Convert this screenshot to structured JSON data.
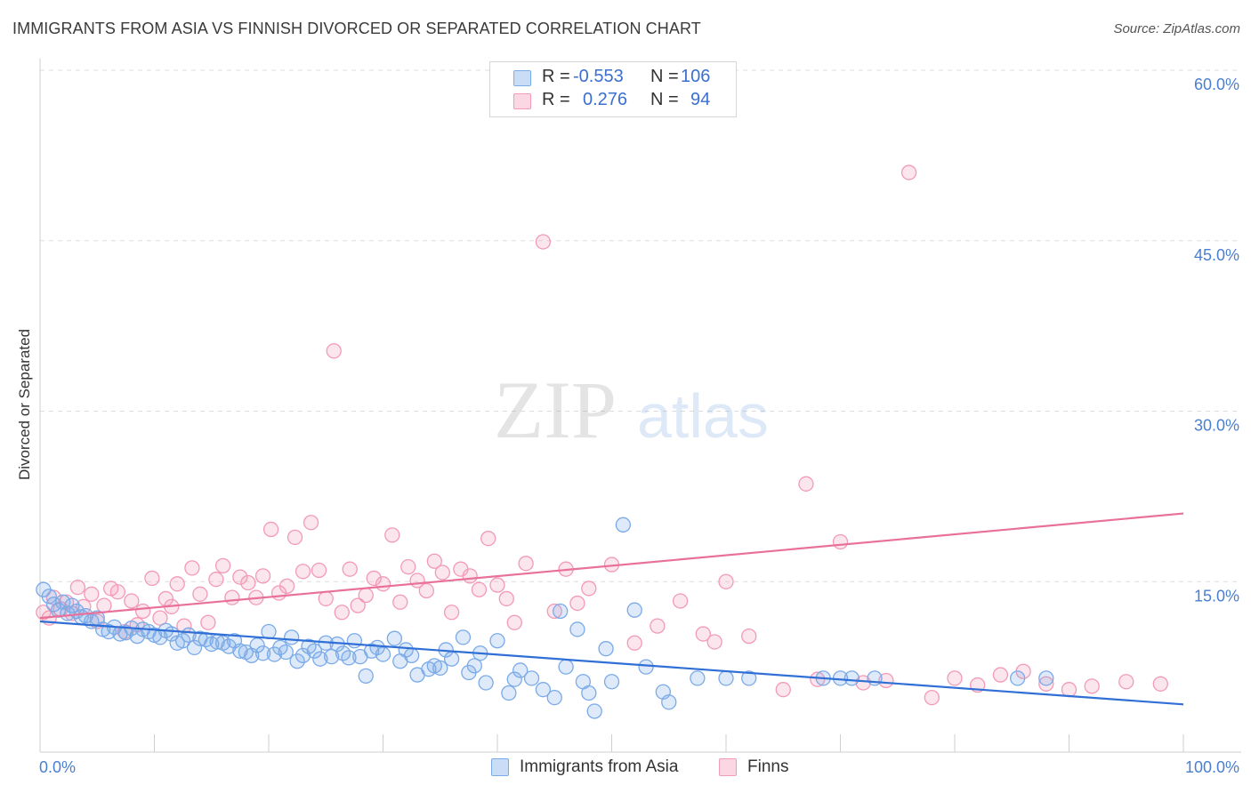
{
  "header": {
    "title": "IMMIGRANTS FROM ASIA VS FINNISH DIVORCED OR SEPARATED CORRELATION CHART",
    "source": "Source: ZipAtlas.com"
  },
  "watermark": {
    "zip": "ZIP",
    "atlas": "atlas"
  },
  "stats": {
    "series1": {
      "r_label": "R =",
      "r_value": "-0.553",
      "n_label": "N =",
      "n_value": "106",
      "color": "#a9c8f2"
    },
    "series2": {
      "r_label": "R =",
      "r_value": "0.276",
      "n_label": "N =",
      "n_value": "94",
      "color": "#f7b8cb"
    }
  },
  "legend": {
    "series1": "Immigrants from Asia",
    "series2": "Finns"
  },
  "chart_data": {
    "type": "scatter",
    "title": "IMMIGRANTS FROM ASIA VS FINNISH DIVORCED OR SEPARATED CORRELATION CHART",
    "xlabel": "",
    "ylabel": "Divorced or Separated",
    "xlim": [
      0,
      100
    ],
    "ylim": [
      0,
      60
    ],
    "x_tick_labels": [
      "0.0%",
      "100.0%"
    ],
    "y_ticks": [
      15,
      30,
      45,
      60
    ],
    "y_tick_labels": [
      "15.0%",
      "30.0%",
      "45.0%",
      "60.0%"
    ],
    "grid": "horizontal dashed",
    "legend_position": "top-center and bottom-center",
    "series": [
      {
        "name": "Immigrants from Asia",
        "color": "#7aaae8",
        "trend_color": "#2f6fd6",
        "trend": {
          "x": [
            0,
            100
          ],
          "y": [
            11.5,
            4.2
          ]
        },
        "x": [
          0.3,
          0.8,
          1.2,
          1.6,
          2.0,
          2.4,
          2.8,
          3.2,
          3.6,
          4.0,
          4.5,
          5.0,
          5.5,
          6.0,
          6.5,
          7.0,
          7.5,
          8.0,
          8.5,
          9.0,
          9.5,
          10.0,
          10.5,
          11.0,
          11.5,
          12.0,
          12.5,
          13.0,
          13.5,
          14.0,
          14.5,
          15.0,
          15.5,
          16.0,
          16.5,
          17.0,
          17.5,
          18.0,
          18.5,
          19.0,
          19.5,
          20.0,
          20.5,
          21.0,
          21.5,
          22.0,
          22.5,
          23.0,
          23.5,
          24.0,
          24.5,
          25.0,
          25.5,
          26.0,
          26.5,
          27.0,
          27.5,
          28.0,
          28.5,
          29.0,
          29.5,
          30.0,
          31.0,
          31.5,
          32.0,
          32.5,
          33.0,
          34.0,
          34.5,
          35.0,
          35.5,
          36.0,
          37.0,
          37.5,
          38.0,
          38.5,
          39.0,
          40.0,
          41.0,
          41.5,
          42.0,
          43.0,
          44.0,
          45.0,
          45.5,
          46.0,
          47.0,
          47.5,
          48.0,
          48.5,
          49.5,
          50.0,
          51.0,
          52.0,
          53.0,
          54.5,
          55.0,
          57.5,
          60.0,
          62.0,
          68.5,
          70.0,
          71.0,
          73.0,
          85.5,
          88.0
        ],
        "y": [
          14.3,
          13.7,
          13.0,
          12.5,
          13.2,
          12.2,
          12.9,
          12.4,
          11.9,
          12.0,
          11.5,
          11.8,
          10.8,
          10.6,
          11.0,
          10.4,
          10.5,
          10.9,
          10.2,
          10.8,
          10.6,
          10.3,
          10.1,
          10.7,
          10.4,
          9.6,
          9.8,
          10.3,
          9.2,
          10.0,
          9.9,
          9.5,
          9.7,
          9.6,
          9.3,
          9.8,
          8.9,
          8.8,
          8.5,
          9.4,
          8.7,
          10.6,
          8.6,
          9.2,
          8.8,
          10.1,
          8.0,
          8.5,
          9.3,
          8.9,
          8.2,
          9.6,
          8.4,
          9.5,
          8.7,
          8.3,
          9.8,
          8.4,
          6.7,
          8.9,
          9.2,
          8.6,
          10.0,
          8.0,
          9.0,
          8.5,
          6.8,
          7.3,
          7.6,
          7.4,
          9.0,
          8.2,
          10.1,
          7.0,
          7.6,
          8.7,
          6.1,
          9.8,
          5.2,
          6.4,
          7.2,
          6.5,
          5.5,
          4.8,
          12.4,
          7.5,
          10.8,
          6.2,
          5.2,
          3.6,
          9.1,
          6.2,
          20.0,
          12.5,
          7.5,
          5.3,
          4.4,
          6.5,
          6.5,
          6.5,
          6.5,
          6.5,
          6.5,
          6.5,
          6.5,
          6.5
        ]
      },
      {
        "name": "Finns",
        "color": "#f29ab6",
        "trend_color": "#e8709a",
        "trend": {
          "x": [
            0,
            100
          ],
          "y": [
            11.8,
            21.0
          ]
        },
        "x": [
          0.3,
          0.8,
          1.2,
          1.8,
          2.3,
          2.8,
          3.3,
          3.8,
          4.5,
          5.0,
          5.6,
          6.2,
          6.8,
          7.4,
          8.0,
          8.5,
          9.0,
          9.8,
          10.5,
          11.0,
          11.5,
          12.0,
          12.6,
          13.3,
          14.0,
          14.7,
          15.4,
          16.0,
          16.8,
          17.5,
          18.2,
          18.9,
          19.5,
          20.2,
          20.9,
          21.6,
          22.3,
          23.0,
          23.7,
          24.4,
          25.0,
          25.7,
          26.4,
          27.1,
          27.8,
          28.5,
          29.2,
          30.0,
          30.8,
          31.5,
          32.2,
          33.0,
          33.8,
          34.5,
          35.2,
          36.0,
          36.8,
          37.6,
          38.4,
          39.2,
          40.0,
          40.8,
          41.5,
          42.5,
          44.0,
          45.0,
          46.0,
          47.0,
          48.0,
          50.0,
          52.0,
          54.0,
          56.0,
          58.0,
          59.0,
          60.0,
          62.0,
          65.0,
          67.0,
          68.0,
          70.0,
          72.0,
          74.0,
          76.0,
          78.0,
          80.0,
          82.0,
          84.0,
          86.0,
          88.0,
          90.0,
          92.0,
          95.0,
          98.0
        ],
        "y": [
          12.3,
          11.8,
          13.6,
          12.6,
          13.2,
          12.2,
          14.5,
          12.8,
          13.9,
          11.5,
          12.9,
          14.4,
          14.1,
          10.6,
          13.3,
          11.2,
          12.4,
          15.3,
          11.8,
          13.5,
          12.8,
          14.8,
          11.1,
          16.2,
          13.9,
          11.4,
          15.2,
          16.4,
          13.6,
          15.4,
          14.9,
          13.6,
          15.5,
          19.6,
          14.0,
          14.6,
          18.9,
          15.9,
          20.2,
          16.0,
          13.5,
          35.3,
          12.3,
          16.1,
          12.9,
          13.8,
          15.3,
          14.8,
          19.1,
          13.2,
          16.3,
          15.1,
          14.2,
          16.8,
          15.8,
          12.3,
          16.1,
          15.5,
          14.3,
          18.8,
          14.7,
          13.5,
          11.4,
          16.6,
          44.9,
          12.4,
          16.1,
          13.1,
          14.4,
          16.5,
          9.6,
          11.1,
          13.3,
          10.4,
          9.7,
          15.0,
          10.2,
          5.5,
          23.6,
          6.4,
          18.5,
          6.1,
          6.3,
          51.0,
          4.8,
          6.5,
          5.9,
          6.8,
          7.1,
          6.0,
          5.5,
          5.8,
          6.2,
          6.0
        ]
      }
    ]
  }
}
